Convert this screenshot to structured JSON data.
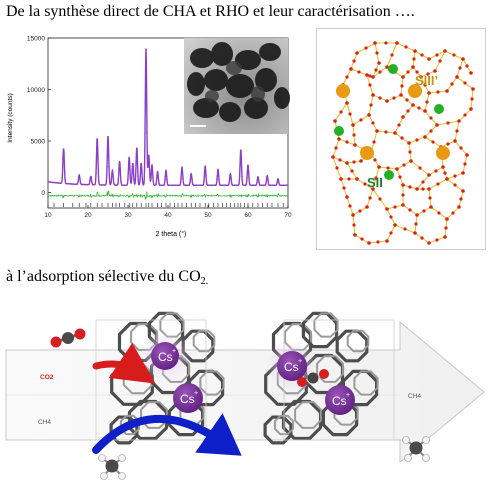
{
  "headings": {
    "line1": "De la synthèse direct de CHA et RHO et leur caractérisation ….",
    "line2_prefix": "à l’adsorption sélective du CO",
    "line2_sub": "2."
  },
  "chart_data": {
    "type": "line",
    "xlabel": "2 theta (°)",
    "ylabel": "Intensity (counts)",
    "xlim": [
      10,
      70
    ],
    "ylim": [
      -1500,
      15000
    ],
    "xticks": [
      "10",
      "20",
      "30",
      "40",
      "50",
      "60",
      "70"
    ],
    "yticks": [
      "0",
      "5000",
      "10000",
      "15000"
    ],
    "ytick_values": [
      0,
      5000,
      10000,
      15000
    ],
    "xtick_values": [
      10,
      20,
      30,
      40,
      50,
      60,
      70
    ],
    "baseline": 700,
    "diff_offset": -300,
    "peaks": [
      {
        "x": 13.9,
        "y": 4100
      },
      {
        "x": 17.8,
        "y": 1600
      },
      {
        "x": 20.7,
        "y": 1500
      },
      {
        "x": 22.3,
        "y": 5200
      },
      {
        "x": 25.0,
        "y": 5400
      },
      {
        "x": 26.1,
        "y": 2100
      },
      {
        "x": 27.9,
        "y": 3000
      },
      {
        "x": 30.3,
        "y": 3400
      },
      {
        "x": 31.2,
        "y": 2800
      },
      {
        "x": 32.2,
        "y": 4300
      },
      {
        "x": 33.3,
        "y": 2800
      },
      {
        "x": 34.5,
        "y": 13900
      },
      {
        "x": 35.2,
        "y": 3600
      },
      {
        "x": 36.0,
        "y": 2600
      },
      {
        "x": 37.4,
        "y": 2000
      },
      {
        "x": 39.5,
        "y": 2100
      },
      {
        "x": 43.5,
        "y": 2400
      },
      {
        "x": 45.8,
        "y": 1800
      },
      {
        "x": 49.3,
        "y": 2500
      },
      {
        "x": 52.5,
        "y": 2200
      },
      {
        "x": 55.6,
        "y": 1800
      },
      {
        "x": 58.2,
        "y": 4100
      },
      {
        "x": 60.0,
        "y": 2600
      },
      {
        "x": 62.5,
        "y": 1500
      },
      {
        "x": 64.8,
        "y": 1600
      },
      {
        "x": 67.5,
        "y": 1300
      }
    ],
    "reflection_positions": [
      11.5,
      13.9,
      16.2,
      17.8,
      19.5,
      20.7,
      22.3,
      23.5,
      25.0,
      26.1,
      27.0,
      27.9,
      29.2,
      30.3,
      31.2,
      32.2,
      33.3,
      34.5,
      35.2,
      36.0,
      37.4,
      38.4,
      39.5,
      40.5,
      41.6,
      42.5,
      43.5,
      44.6,
      45.8,
      46.9,
      48.0,
      49.3,
      50.2,
      51.4,
      52.5,
      53.6,
      54.6,
      55.6,
      56.7,
      57.5,
      58.2,
      59.1,
      60.0,
      61.2,
      62.5,
      63.6,
      64.8,
      66.0,
      67.5,
      68.8
    ]
  },
  "structure": {
    "labels": {
      "site1": "SIII’",
      "site2": "SII"
    },
    "colors": {
      "framework_line": "#e8c226",
      "oxygen": "#d6231e",
      "cation_large": "#e89a12",
      "cation_small": "#23b023",
      "label1": "#c9940f",
      "label2": "#1f7a2a"
    }
  },
  "schema": {
    "labels": {
      "co2": "CO2",
      "ch4_left": "CH4",
      "ch4_right": "CH4",
      "cation": "Cs"
    },
    "cation_charge": "+",
    "colors": {
      "co2": "#d62020",
      "ch4": "#555555",
      "cation": "#7a2f9a",
      "arrow_red": "#d71c1c",
      "arrow_blue": "#1020c8"
    }
  }
}
